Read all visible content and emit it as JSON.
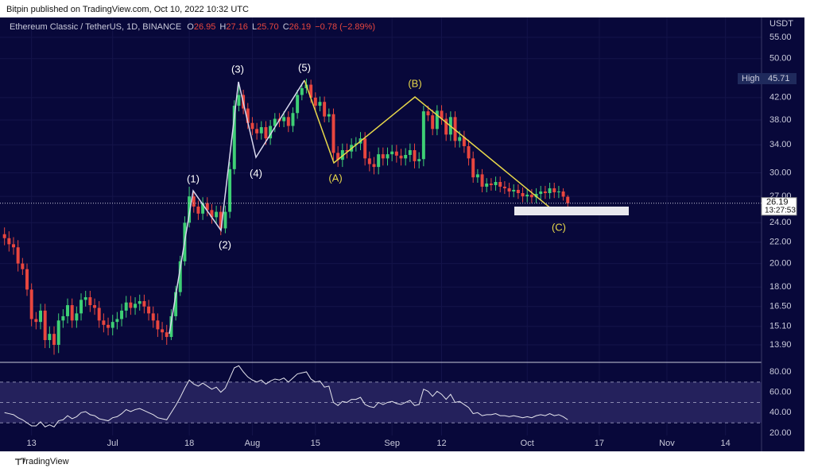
{
  "header": {
    "published": "Bitpin published on TradingView.com, Oct 10, 2022 10:32 UTC"
  },
  "footer": {
    "brand": "TradingView"
  },
  "chart_data": [
    {
      "type": "candlestick",
      "title": "Ethereum Classic / TetherUS, 1D, BINANCE",
      "legend_prefixes": [
        "O",
        "H",
        "L",
        "C"
      ],
      "legend_values": [
        "26.95",
        "27.16",
        "25.70",
        "26.19"
      ],
      "change": "−0.78 (−2.89%)",
      "currency": "USDT",
      "countdown": "13:27:53",
      "high_marker": "High",
      "annotations": [
        "(1)",
        "(2)",
        "(3)",
        "(4)",
        "(5)",
        "(A)",
        "(B)",
        "(C)"
      ],
      "log_scale": true,
      "up_color": "#3ecf75",
      "down_color": "#e8463f",
      "open": [
        22.8,
        22.4,
        21.8,
        21.5,
        20.0,
        19.5,
        17.8,
        15.6,
        15.4,
        16.2,
        14.2,
        14.6,
        13.9,
        15.5,
        15.8,
        16.6,
        15.5,
        16.0,
        17.0,
        17.2,
        16.6,
        16.4,
        15.5,
        15.2,
        15.0,
        15.4,
        15.6,
        16.2,
        16.8,
        16.4,
        16.7,
        16.9,
        16.5,
        16.0,
        15.5,
        14.9,
        14.7,
        14.4,
        15.8,
        17.6,
        20.2,
        24.0,
        27.0,
        25.8,
        25.0,
        26.2,
        25.4,
        24.6,
        25.2,
        23.4,
        25.2,
        30.5,
        40.5,
        42.5,
        40.0,
        37.5,
        36.5,
        35.8,
        36.8,
        35.0,
        37.0,
        38.2,
        37.8,
        38.5,
        37.0,
        39.2,
        42.5,
        43.8,
        44.5,
        42.0,
        40.5,
        41.2,
        38.6,
        39.0,
        32.8,
        31.8,
        33.2,
        33.0,
        34.0,
        34.2,
        35.0,
        32.0,
        31.2,
        30.8,
        32.6,
        32.0,
        32.6,
        33.0,
        32.4,
        32.0,
        32.5,
        33.2,
        31.6,
        31.9,
        39.5,
        38.8,
        36.5,
        39.6,
        38.2,
        35.6,
        38.5,
        34.6,
        35.2,
        33.8,
        32.0,
        29.4,
        29.8,
        28.2,
        28.6,
        28.4,
        28.8,
        28.2,
        28.0,
        27.6,
        27.8,
        27.4,
        27.0,
        27.2,
        26.9,
        27.3,
        27.6,
        27.4,
        28.0,
        27.5,
        27.6,
        26.95
      ],
      "high": [
        23.5,
        23.1,
        22.5,
        22.2,
        20.5,
        20.0,
        18.3,
        16.1,
        16.7,
        16.7,
        15.1,
        15.1,
        16.0,
        16.3,
        17.1,
        17.1,
        16.5,
        17.5,
        17.7,
        17.7,
        17.1,
        16.9,
        16.0,
        15.7,
        15.9,
        16.1,
        16.7,
        17.3,
        17.3,
        17.2,
        17.4,
        17.4,
        17.0,
        16.5,
        16.0,
        15.4,
        15.2,
        16.3,
        18.1,
        20.7,
        24.7,
        28.2,
        27.7,
        26.5,
        26.9,
        26.9,
        26.1,
        25.9,
        25.9,
        25.9,
        31.5,
        41.5,
        45.0,
        43.5,
        41.0,
        38.5,
        37.5,
        37.8,
        37.8,
        38.0,
        39.2,
        39.2,
        39.5,
        39.5,
        40.2,
        43.5,
        44.8,
        45.71,
        45.5,
        43.0,
        42.2,
        42.2,
        40.0,
        40.0,
        33.8,
        34.2,
        34.2,
        35.0,
        35.2,
        36.0,
        36.0,
        33.0,
        32.2,
        33.6,
        33.6,
        33.6,
        34.0,
        34.0,
        33.4,
        33.5,
        34.2,
        34.2,
        32.9,
        40.5,
        40.5,
        39.8,
        40.6,
        40.6,
        39.2,
        39.5,
        39.5,
        36.2,
        36.2,
        34.8,
        33.0,
        30.5,
        30.5,
        29.3,
        29.3,
        29.5,
        29.5,
        28.9,
        28.7,
        28.5,
        28.5,
        28.1,
        27.9,
        27.9,
        28.0,
        28.3,
        28.3,
        28.7,
        28.7,
        28.3,
        28.0,
        27.16
      ],
      "low": [
        21.7,
        21.1,
        20.8,
        19.3,
        19.0,
        17.3,
        15.1,
        14.9,
        14.9,
        13.7,
        13.7,
        13.3,
        13.4,
        15.0,
        15.3,
        15.0,
        15.0,
        15.5,
        16.5,
        16.1,
        15.9,
        15.0,
        14.7,
        14.5,
        14.5,
        14.9,
        15.1,
        15.7,
        15.9,
        15.9,
        16.2,
        16.0,
        15.5,
        15.0,
        14.4,
        14.2,
        13.9,
        14.2,
        15.5,
        17.3,
        19.8,
        23.5,
        25.1,
        24.3,
        24.3,
        24.7,
        23.9,
        23.9,
        22.7,
        22.9,
        24.5,
        29.8,
        39.5,
        39.0,
        36.5,
        35.5,
        34.8,
        34.8,
        34.0,
        34.0,
        36.0,
        36.8,
        36.8,
        36.0,
        36.0,
        38.2,
        41.5,
        42.8,
        41.0,
        39.5,
        39.5,
        37.6,
        37.6,
        31.8,
        30.8,
        30.8,
        32.0,
        32.0,
        33.0,
        33.2,
        31.0,
        30.2,
        29.8,
        29.8,
        31.0,
        31.0,
        31.6,
        31.4,
        31.0,
        31.0,
        31.5,
        30.6,
        30.6,
        30.9,
        37.8,
        35.5,
        35.5,
        37.2,
        34.6,
        34.6,
        33.6,
        33.6,
        32.8,
        31.0,
        28.7,
        28.7,
        27.5,
        27.5,
        27.7,
        27.7,
        27.5,
        27.3,
        26.9,
        26.9,
        26.7,
        26.3,
        26.3,
        26.2,
        26.2,
        26.6,
        26.7,
        26.7,
        26.8,
        26.8,
        26.5,
        25.7
      ],
      "close": [
        22.4,
        21.8,
        21.5,
        20.0,
        19.5,
        17.8,
        15.6,
        15.4,
        16.2,
        14.2,
        14.6,
        13.9,
        15.5,
        15.8,
        16.6,
        15.5,
        16.0,
        17.0,
        17.2,
        16.6,
        16.4,
        15.5,
        15.2,
        15.0,
        15.4,
        15.6,
        16.2,
        16.8,
        16.4,
        16.7,
        16.9,
        16.5,
        16.0,
        15.5,
        14.9,
        14.7,
        14.4,
        15.8,
        17.6,
        20.2,
        24.0,
        27.0,
        25.8,
        25.0,
        26.2,
        25.4,
        24.6,
        25.2,
        23.4,
        25.2,
        30.5,
        40.5,
        42.5,
        40.0,
        37.5,
        36.5,
        35.8,
        36.8,
        35.0,
        37.0,
        38.2,
        37.8,
        38.5,
        37.0,
        39.2,
        42.5,
        43.8,
        44.5,
        42.0,
        40.5,
        41.2,
        38.6,
        39.0,
        32.8,
        31.8,
        33.2,
        33.0,
        34.0,
        34.2,
        35.0,
        32.0,
        31.2,
        30.8,
        32.6,
        32.0,
        32.6,
        33.0,
        32.4,
        32.0,
        32.5,
        33.2,
        31.6,
        31.9,
        39.5,
        38.8,
        36.5,
        39.6,
        38.2,
        35.6,
        38.5,
        34.6,
        35.2,
        33.8,
        32.0,
        29.4,
        29.8,
        28.2,
        28.6,
        28.4,
        28.8,
        28.2,
        28.0,
        27.6,
        27.8,
        27.4,
        27.0,
        27.2,
        26.9,
        27.3,
        27.6,
        27.4,
        28.0,
        27.5,
        27.6,
        26.97,
        26.19
      ],
      "xlim": [
        -1,
        168
      ],
      "xticks": [
        {
          "value": 6,
          "label": "13"
        },
        {
          "value": 24,
          "label": "Jul"
        },
        {
          "value": 41,
          "label": "18"
        },
        {
          "value": 55,
          "label": "Aug"
        },
        {
          "value": 69,
          "label": "15"
        },
        {
          "value": 86,
          "label": "Sep"
        },
        {
          "value": 97,
          "label": "12"
        },
        {
          "value": 116,
          "label": "Oct"
        },
        {
          "value": 132,
          "label": "17"
        },
        {
          "value": 147,
          "label": "Nov"
        },
        {
          "value": 160,
          "label": "14"
        }
      ],
      "ylim": [
        12.9,
        60.1
      ],
      "yticks": [
        {
          "value": 55,
          "label": "55.00"
        },
        {
          "value": 50,
          "label": "50.00"
        },
        {
          "value": 42,
          "label": "42.00"
        },
        {
          "value": 38,
          "label": "38.00"
        },
        {
          "value": 34,
          "label": "34.00"
        },
        {
          "value": 30,
          "label": "30.00"
        },
        {
          "value": 27,
          "label": "27.00"
        },
        {
          "value": 24,
          "label": "24.00"
        },
        {
          "value": 22,
          "label": "22.00"
        },
        {
          "value": 20,
          "label": "20.00"
        },
        {
          "value": 18,
          "label": "18.00"
        },
        {
          "value": 16.5,
          "label": "16.50"
        },
        {
          "value": 15.1,
          "label": "15.10"
        },
        {
          "value": 13.9,
          "label": "13.90"
        }
      ]
    },
    {
      "type": "line",
      "color": "#e6e6ee",
      "band": [
        30,
        70
      ],
      "band_color": "#24215c",
      "levels": [
        30,
        50,
        70
      ],
      "values": [
        40,
        39,
        38,
        35,
        33,
        30,
        27,
        27,
        31,
        26,
        28,
        26,
        32,
        33,
        37,
        34,
        36,
        40,
        41,
        38,
        37,
        34,
        33,
        32,
        35,
        36,
        39,
        43,
        41,
        43,
        44,
        42,
        40,
        38,
        35,
        34,
        33,
        40,
        47,
        55,
        64,
        72,
        68,
        66,
        69,
        66,
        63,
        65,
        60,
        64,
        74,
        84,
        86,
        80,
        75,
        72,
        70,
        72,
        68,
        71,
        73,
        72,
        74,
        70,
        74,
        78,
        79,
        80,
        73,
        70,
        71,
        65,
        66,
        50,
        47,
        51,
        50,
        53,
        53,
        55,
        48,
        46,
        45,
        50,
        48,
        50,
        51,
        49,
        48,
        50,
        52,
        47,
        48,
        63,
        61,
        56,
        61,
        58,
        53,
        58,
        50,
        51,
        48,
        45,
        39,
        40,
        37,
        38,
        38,
        39,
        37,
        37,
        36,
        37,
        36,
        35,
        36,
        35,
        37,
        38,
        37,
        39,
        37,
        38,
        36,
        33
      ],
      "xlim": [
        -1,
        168
      ],
      "ylim": [
        17.6,
        87.8
      ],
      "yticks": [
        {
          "value": 80,
          "label": "80.00"
        },
        {
          "value": 60,
          "label": "60.00"
        },
        {
          "value": 40,
          "label": "40.00"
        },
        {
          "value": 20,
          "label": "20.00"
        }
      ]
    }
  ]
}
